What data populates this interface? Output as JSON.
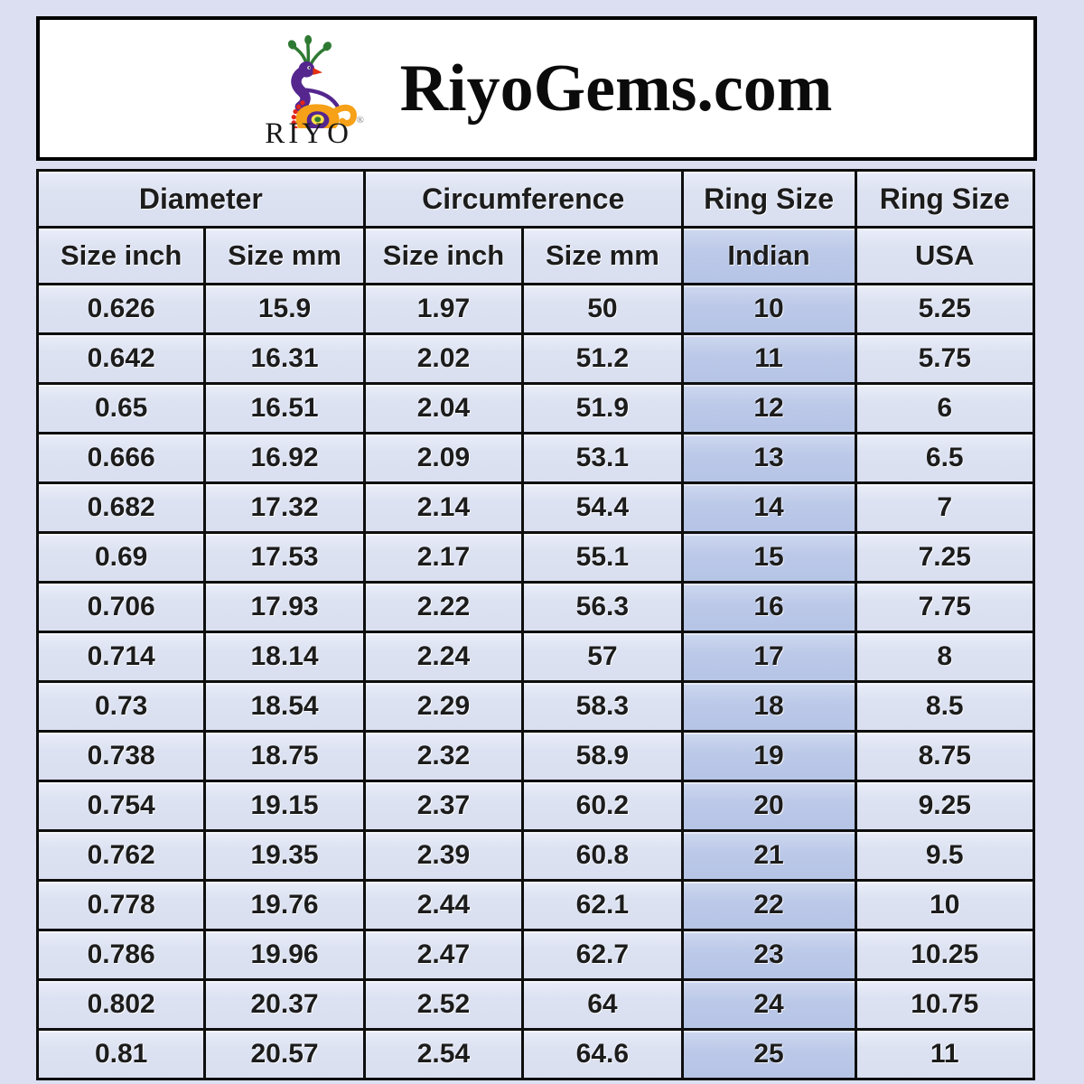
{
  "page": {
    "background_color": "#dbdff1",
    "accent_highlight_color": "#bcc9e8",
    "border_color": "#0e0e0e"
  },
  "header": {
    "brand": "RIYO",
    "registered_mark": "®",
    "title": "RiyoGems.com",
    "logo_icon": "peacock-icon",
    "logo_colors": {
      "crest_green": "#2e7a33",
      "neck_purple": "#54268e",
      "beak_red": "#e2300f",
      "body_orange": "#f6a117",
      "dot_red": "#e1251b",
      "eye_yellow": "#ffe24a"
    }
  },
  "table": {
    "group_headers": [
      {
        "label": "Diameter",
        "colspan": 2
      },
      {
        "label": "Circumference",
        "colspan": 2
      },
      {
        "label": "Ring Size",
        "colspan": 1
      },
      {
        "label": "Ring Size",
        "colspan": 1
      }
    ],
    "sub_headers": [
      "Size inch",
      "Size mm",
      "Size inch",
      "Size mm",
      "Indian",
      "USA"
    ],
    "highlight_column_index": 4,
    "rows": [
      [
        "0.626",
        "15.9",
        "1.97",
        "50",
        "10",
        "5.25"
      ],
      [
        "0.642",
        "16.31",
        "2.02",
        "51.2",
        "11",
        "5.75"
      ],
      [
        "0.65",
        "16.51",
        "2.04",
        "51.9",
        "12",
        "6"
      ],
      [
        "0.666",
        "16.92",
        "2.09",
        "53.1",
        "13",
        "6.5"
      ],
      [
        "0.682",
        "17.32",
        "2.14",
        "54.4",
        "14",
        "7"
      ],
      [
        "0.69",
        "17.53",
        "2.17",
        "55.1",
        "15",
        "7.25"
      ],
      [
        "0.706",
        "17.93",
        "2.22",
        "56.3",
        "16",
        "7.75"
      ],
      [
        "0.714",
        "18.14",
        "2.24",
        "57",
        "17",
        "8"
      ],
      [
        "0.73",
        "18.54",
        "2.29",
        "58.3",
        "18",
        "8.5"
      ],
      [
        "0.738",
        "18.75",
        "2.32",
        "58.9",
        "19",
        "8.75"
      ],
      [
        "0.754",
        "19.15",
        "2.37",
        "60.2",
        "20",
        "9.25"
      ],
      [
        "0.762",
        "19.35",
        "2.39",
        "60.8",
        "21",
        "9.5"
      ],
      [
        "0.778",
        "19.76",
        "2.44",
        "62.1",
        "22",
        "10"
      ],
      [
        "0.786",
        "19.96",
        "2.47",
        "62.7",
        "23",
        "10.25"
      ],
      [
        "0.802",
        "20.37",
        "2.52",
        "64",
        "24",
        "10.75"
      ],
      [
        "0.81",
        "20.57",
        "2.54",
        "64.6",
        "25",
        "11"
      ]
    ]
  },
  "chart_data": {
    "type": "table",
    "title": "RiyoGems.com ring size conversion chart",
    "column_groups": [
      "Diameter",
      "Diameter",
      "Circumference",
      "Circumference",
      "Ring Size",
      "Ring Size"
    ],
    "columns": [
      "Diameter Size inch",
      "Diameter Size mm",
      "Circumference Size inch",
      "Circumference Size mm",
      "Ring Size Indian",
      "Ring Size USA"
    ],
    "rows": [
      [
        0.626,
        15.9,
        1.97,
        50,
        10,
        5.25
      ],
      [
        0.642,
        16.31,
        2.02,
        51.2,
        11,
        5.75
      ],
      [
        0.65,
        16.51,
        2.04,
        51.9,
        12,
        6
      ],
      [
        0.666,
        16.92,
        2.09,
        53.1,
        13,
        6.5
      ],
      [
        0.682,
        17.32,
        2.14,
        54.4,
        14,
        7
      ],
      [
        0.69,
        17.53,
        2.17,
        55.1,
        15,
        7.25
      ],
      [
        0.706,
        17.93,
        2.22,
        56.3,
        16,
        7.75
      ],
      [
        0.714,
        18.14,
        2.24,
        57,
        17,
        8
      ],
      [
        0.73,
        18.54,
        2.29,
        58.3,
        18,
        8.5
      ],
      [
        0.738,
        18.75,
        2.32,
        58.9,
        19,
        8.75
      ],
      [
        0.754,
        19.15,
        2.37,
        60.2,
        20,
        9.25
      ],
      [
        0.762,
        19.35,
        2.39,
        60.8,
        21,
        9.5
      ],
      [
        0.778,
        19.76,
        2.44,
        62.1,
        22,
        10
      ],
      [
        0.786,
        19.96,
        2.47,
        62.7,
        23,
        10.25
      ],
      [
        0.802,
        20.37,
        2.52,
        64,
        24,
        10.75
      ],
      [
        0.81,
        20.57,
        2.54,
        64.6,
        25,
        11
      ]
    ],
    "layout_hints": {
      "highlighted_column": "Ring Size Indian",
      "grid": true
    }
  }
}
